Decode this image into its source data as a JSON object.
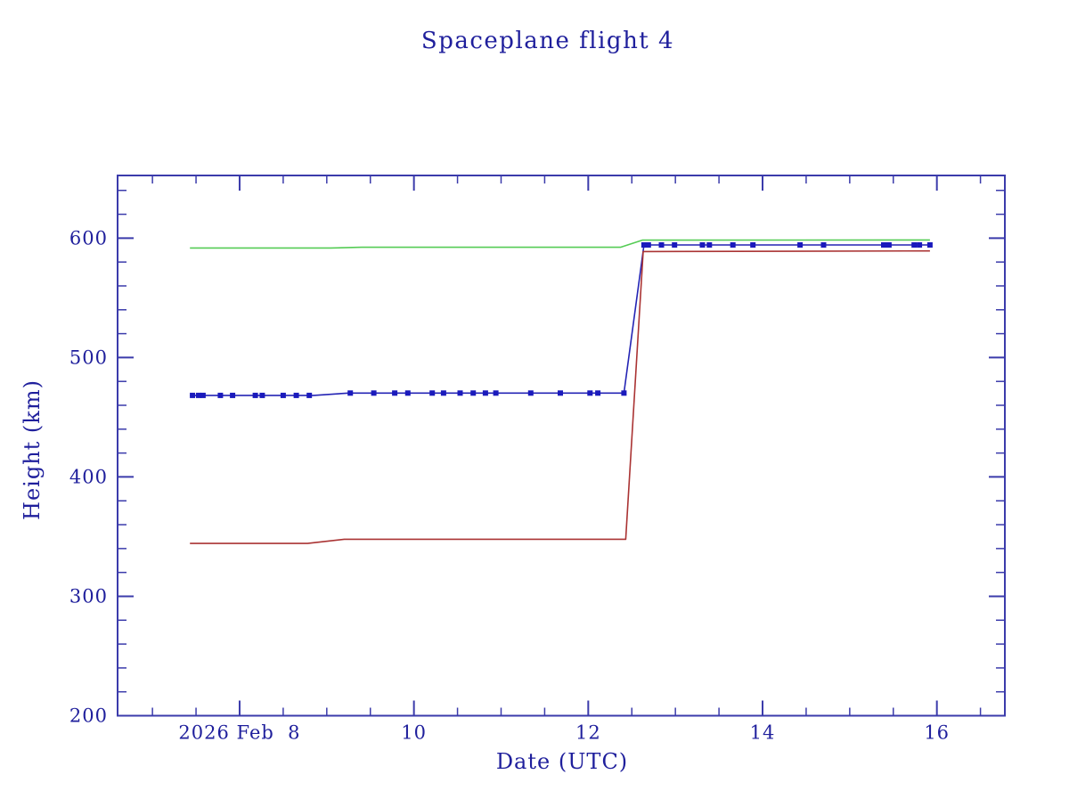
{
  "chart_data": {
    "type": "line",
    "title": "Spaceplane flight 4",
    "xlabel": "Date (UTC)",
    "ylabel": "Height (km)",
    "xlim": [
      6.6,
      16.78
    ],
    "ylim": [
      200,
      652.5
    ],
    "x_axis_unit": "day of 2026 Feb",
    "x_major_ticks": [
      8,
      10,
      12,
      14,
      16
    ],
    "x_major_tick_labels": [
      "2026 Feb  8",
      "10",
      "12",
      "14",
      "16"
    ],
    "x_minor_tick_step": 0.5,
    "y_major_ticks": [
      200,
      300,
      400,
      500,
      600
    ],
    "y_major_tick_labels": [
      "200",
      "300",
      "400",
      "500",
      "600"
    ],
    "y_minor_tick_step": 20,
    "grid": false,
    "legend": "none",
    "frame_color": "#3b3bab",
    "text_color": "#1f1f9c",
    "series": [
      {
        "name": "apogee-height",
        "color": "#55cc55",
        "marker": "none",
        "points": [
          [
            7.43,
            591.8
          ],
          [
            9.05,
            591.8
          ],
          [
            9.4,
            592.4
          ],
          [
            12.37,
            592.4
          ],
          [
            12.62,
            598.3
          ],
          [
            15.92,
            598.5
          ]
        ]
      },
      {
        "name": "mean-height",
        "color": "#2424b4",
        "marker": "square",
        "marker_color": "#1a1abc",
        "points": [
          [
            7.43,
            468.3
          ],
          [
            8.85,
            468.3
          ],
          [
            9.25,
            470.2
          ],
          [
            12.41,
            470.2
          ],
          [
            12.64,
            594.3
          ],
          [
            15.92,
            594.3
          ]
        ],
        "marker_points": [
          [
            7.46,
            468.3
          ],
          [
            7.53,
            468.3
          ],
          [
            7.58,
            468.3
          ],
          [
            7.78,
            468.3
          ],
          [
            7.92,
            468.3
          ],
          [
            8.18,
            468.3
          ],
          [
            8.26,
            468.3
          ],
          [
            8.5,
            468.3
          ],
          [
            8.65,
            468.3
          ],
          [
            8.8,
            468.3
          ],
          [
            9.27,
            470.2
          ],
          [
            9.54,
            470.2
          ],
          [
            9.78,
            470.2
          ],
          [
            9.93,
            470.2
          ],
          [
            10.21,
            470.2
          ],
          [
            10.34,
            470.2
          ],
          [
            10.53,
            470.2
          ],
          [
            10.68,
            470.2
          ],
          [
            10.82,
            470.2
          ],
          [
            10.94,
            470.2
          ],
          [
            11.34,
            470.2
          ],
          [
            11.68,
            470.2
          ],
          [
            12.02,
            470.2
          ],
          [
            12.11,
            470.2
          ],
          [
            12.41,
            470.2
          ],
          [
            12.64,
            594.3
          ],
          [
            12.69,
            594.3
          ],
          [
            12.84,
            594.3
          ],
          [
            12.99,
            594.3
          ],
          [
            13.31,
            594.3
          ],
          [
            13.39,
            594.3
          ],
          [
            13.66,
            594.3
          ],
          [
            13.89,
            594.3
          ],
          [
            14.43,
            594.3
          ],
          [
            14.7,
            594.3
          ],
          [
            15.39,
            594.3
          ],
          [
            15.45,
            594.3
          ],
          [
            15.74,
            594.3
          ],
          [
            15.8,
            594.3
          ],
          [
            15.92,
            594.3
          ]
        ]
      },
      {
        "name": "perigee-height",
        "color": "#aa3333",
        "marker": "none",
        "points": [
          [
            7.43,
            344.3
          ],
          [
            8.78,
            344.3
          ],
          [
            9.2,
            347.8
          ],
          [
            12.43,
            347.8
          ],
          [
            12.63,
            588.8
          ],
          [
            15.92,
            589.3
          ]
        ]
      }
    ]
  }
}
